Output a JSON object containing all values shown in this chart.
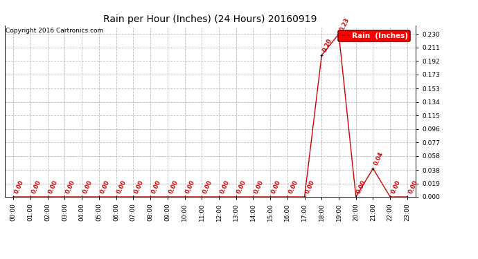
{
  "title": "Rain per Hour (Inches) (24 Hours) 20160919",
  "copyright": "Copyright 2016 Cartronics.com",
  "legend_label": "Rain  (Inches)",
  "line_color": "#cc0000",
  "background_color": "#ffffff",
  "grid_color": "#bbbbbb",
  "hours": [
    0,
    1,
    2,
    3,
    4,
    5,
    6,
    7,
    8,
    9,
    10,
    11,
    12,
    13,
    14,
    15,
    16,
    17,
    18,
    19,
    20,
    21,
    22,
    23
  ],
  "values": [
    0.0,
    0.0,
    0.0,
    0.0,
    0.0,
    0.0,
    0.0,
    0.0,
    0.0,
    0.0,
    0.0,
    0.0,
    0.0,
    0.0,
    0.0,
    0.0,
    0.0,
    0.0,
    0.2,
    0.23,
    0.0,
    0.04,
    0.0,
    0.0
  ],
  "yticks": [
    0.0,
    0.019,
    0.038,
    0.058,
    0.077,
    0.096,
    0.115,
    0.134,
    0.153,
    0.173,
    0.192,
    0.211,
    0.23
  ],
  "ylim": [
    0.0,
    0.2415
  ],
  "title_fontsize": 10,
  "copyright_fontsize": 6.5,
  "tick_fontsize": 6.5,
  "annotation_fontsize": 6,
  "legend_fontsize": 7.5
}
